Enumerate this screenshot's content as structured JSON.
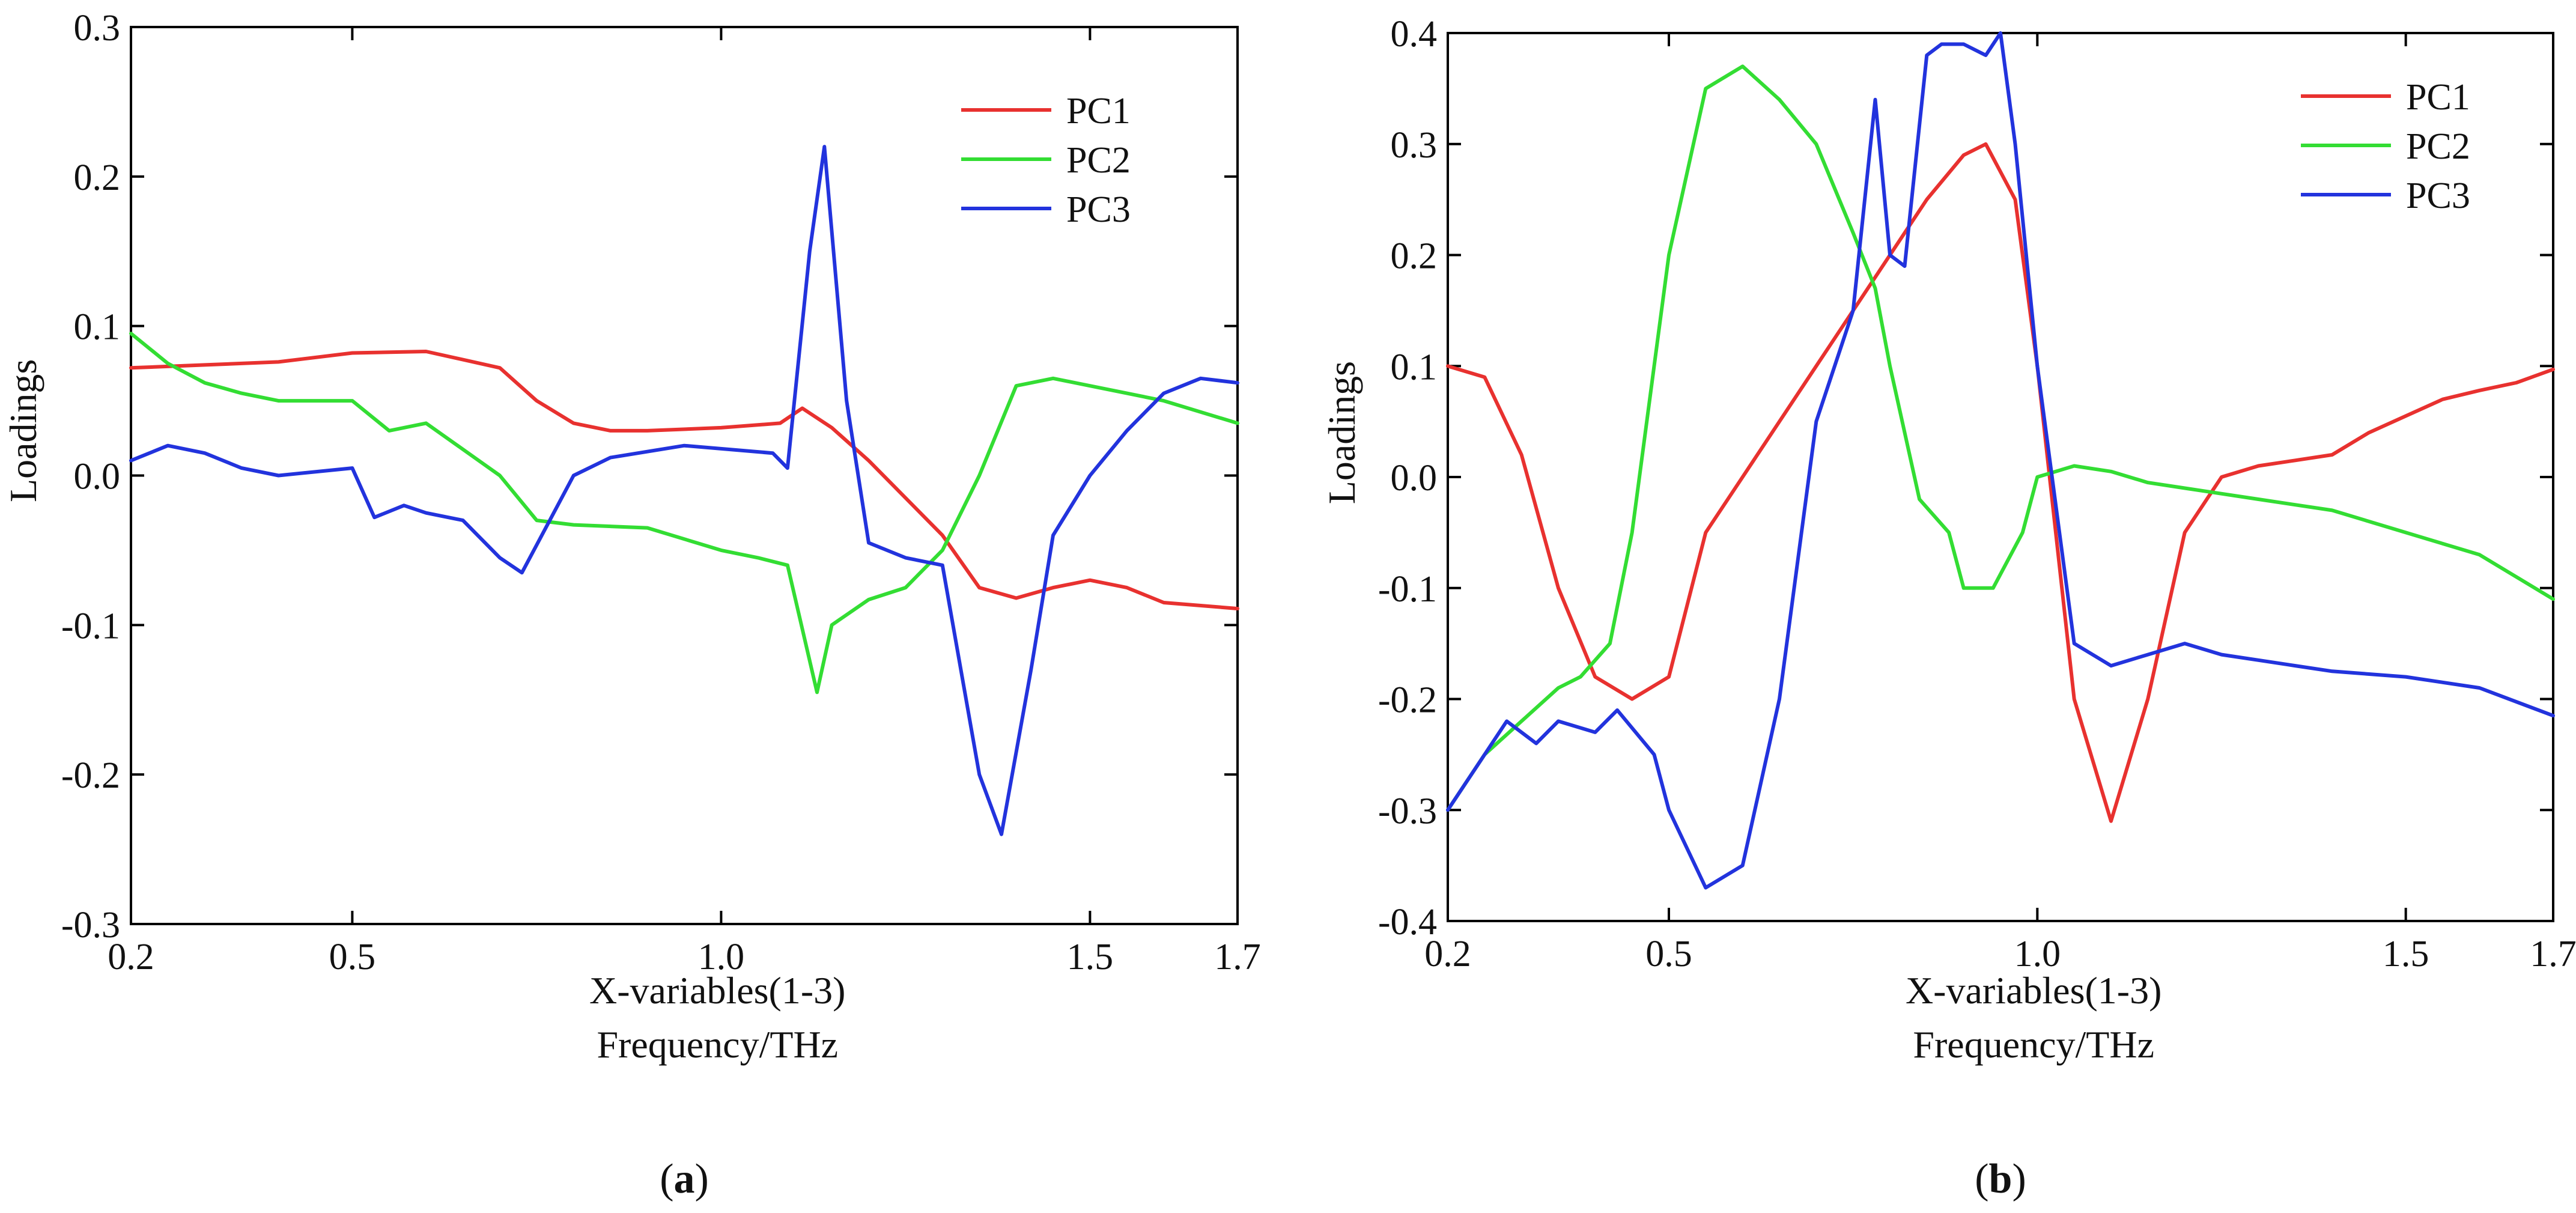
{
  "chart_data": [
    {
      "type": "line",
      "panel": "a",
      "panel_label": [
        "(",
        "a",
        ")"
      ],
      "xlabel": "X-variables(1-3)",
      "xlabel2": "Frequency/THz",
      "ylabel": "Loadings",
      "xlim": [
        0.2,
        1.7
      ],
      "ylim": [
        -0.3,
        0.3
      ],
      "xticks": [
        0.2,
        0.5,
        1.0,
        1.5,
        1.7
      ],
      "xtick_labels": [
        "0.2",
        "0.5",
        "1.0",
        "1.5",
        "1.7"
      ],
      "yticks": [
        -0.3,
        -0.2,
        -0.1,
        0.0,
        0.1,
        0.2,
        0.3
      ],
      "ytick_labels": [
        "-0.3",
        "-0.2",
        "-0.1",
        "0.0",
        "0.1",
        "0.2",
        "0.3"
      ],
      "legend_position": "top-right",
      "series": [
        {
          "name": "PC1",
          "color": "#e8312f",
          "x": [
            0.2,
            0.3,
            0.4,
            0.5,
            0.6,
            0.7,
            0.75,
            0.8,
            0.85,
            0.9,
            1.0,
            1.08,
            1.11,
            1.15,
            1.2,
            1.3,
            1.35,
            1.4,
            1.45,
            1.5,
            1.55,
            1.6,
            1.7
          ],
          "y": [
            0.072,
            0.074,
            0.076,
            0.082,
            0.083,
            0.072,
            0.05,
            0.035,
            0.03,
            0.03,
            0.032,
            0.035,
            0.045,
            0.032,
            0.01,
            -0.04,
            -0.075,
            -0.082,
            -0.075,
            -0.07,
            -0.075,
            -0.085,
            -0.089
          ]
        },
        {
          "name": "PC2",
          "color": "#33dd33",
          "x": [
            0.2,
            0.25,
            0.3,
            0.35,
            0.4,
            0.5,
            0.55,
            0.6,
            0.7,
            0.75,
            0.8,
            0.9,
            1.0,
            1.05,
            1.09,
            1.13,
            1.15,
            1.2,
            1.25,
            1.3,
            1.35,
            1.4,
            1.45,
            1.5,
            1.55,
            1.6,
            1.7
          ],
          "y": [
            0.095,
            0.075,
            0.062,
            0.055,
            0.05,
            0.05,
            0.03,
            0.035,
            0.0,
            -0.03,
            -0.033,
            -0.035,
            -0.05,
            -0.055,
            -0.06,
            -0.145,
            -0.1,
            -0.083,
            -0.075,
            -0.05,
            0.0,
            0.06,
            0.065,
            0.06,
            0.055,
            0.05,
            0.035
          ]
        },
        {
          "name": "PC3",
          "color": "#2233dd",
          "x": [
            0.2,
            0.25,
            0.3,
            0.35,
            0.4,
            0.5,
            0.53,
            0.57,
            0.6,
            0.65,
            0.7,
            0.73,
            0.8,
            0.85,
            0.95,
            1.07,
            1.09,
            1.12,
            1.14,
            1.17,
            1.2,
            1.25,
            1.3,
            1.35,
            1.38,
            1.42,
            1.45,
            1.5,
            1.55,
            1.6,
            1.65,
            1.7
          ],
          "y": [
            0.01,
            0.02,
            0.015,
            0.005,
            0.0,
            0.005,
            -0.028,
            -0.02,
            -0.025,
            -0.03,
            -0.055,
            -0.065,
            0.0,
            0.012,
            0.02,
            0.015,
            0.005,
            0.15,
            0.22,
            0.05,
            -0.045,
            -0.055,
            -0.06,
            -0.2,
            -0.24,
            -0.13,
            -0.04,
            0.0,
            0.03,
            0.055,
            0.065,
            0.062
          ]
        }
      ]
    },
    {
      "type": "line",
      "panel": "b",
      "panel_label": [
        "(",
        "b",
        ")"
      ],
      "xlabel": "X-variables(1-3)",
      "xlabel2": "Frequency/THz",
      "ylabel": "Loadings",
      "xlim": [
        0.2,
        1.7
      ],
      "ylim": [
        -0.4,
        0.4
      ],
      "xticks": [
        0.2,
        0.5,
        1.0,
        1.5,
        1.7
      ],
      "xtick_labels": [
        "0.2",
        "0.5",
        "1.0",
        "1.5",
        "1.7"
      ],
      "yticks": [
        -0.4,
        -0.3,
        -0.2,
        -0.1,
        0.0,
        0.1,
        0.2,
        0.3,
        0.4
      ],
      "ytick_labels": [
        "-0.4",
        "-0.3",
        "-0.2",
        "-0.1",
        "0.0",
        "0.1",
        "0.2",
        "0.3",
        "0.4"
      ],
      "legend_position": "top-right",
      "series": [
        {
          "name": "PC1",
          "color": "#e8312f",
          "x": [
            0.2,
            0.25,
            0.3,
            0.35,
            0.4,
            0.45,
            0.5,
            0.55,
            0.6,
            0.65,
            0.7,
            0.75,
            0.8,
            0.85,
            0.9,
            0.93,
            0.97,
            1.0,
            1.05,
            1.1,
            1.15,
            1.2,
            1.25,
            1.3,
            1.35,
            1.4,
            1.45,
            1.5,
            1.55,
            1.6,
            1.65,
            1.7
          ],
          "y": [
            0.1,
            0.09,
            0.02,
            -0.1,
            -0.18,
            -0.2,
            -0.18,
            -0.05,
            0.0,
            0.05,
            0.1,
            0.15,
            0.2,
            0.25,
            0.29,
            0.3,
            0.25,
            0.1,
            -0.2,
            -0.31,
            -0.2,
            -0.05,
            0.0,
            0.01,
            0.015,
            0.02,
            0.04,
            0.055,
            0.07,
            0.078,
            0.085,
            0.097
          ]
        },
        {
          "name": "PC2",
          "color": "#33dd33",
          "x": [
            0.2,
            0.25,
            0.3,
            0.35,
            0.38,
            0.42,
            0.45,
            0.5,
            0.55,
            0.6,
            0.65,
            0.7,
            0.75,
            0.78,
            0.8,
            0.84,
            0.88,
            0.9,
            0.94,
            0.98,
            1.0,
            1.05,
            1.1,
            1.15,
            1.2,
            1.3,
            1.4,
            1.5,
            1.6,
            1.7
          ],
          "y": [
            -0.3,
            -0.25,
            -0.22,
            -0.19,
            -0.18,
            -0.15,
            -0.05,
            0.2,
            0.35,
            0.37,
            0.34,
            0.3,
            0.22,
            0.17,
            0.1,
            -0.02,
            -0.05,
            -0.1,
            -0.1,
            -0.05,
            0.0,
            0.01,
            0.005,
            -0.005,
            -0.01,
            -0.02,
            -0.03,
            -0.05,
            -0.07,
            -0.11
          ]
        },
        {
          "name": "PC3",
          "color": "#2233dd",
          "x": [
            0.2,
            0.25,
            0.28,
            0.32,
            0.35,
            0.4,
            0.43,
            0.48,
            0.5,
            0.55,
            0.6,
            0.65,
            0.7,
            0.75,
            0.78,
            0.8,
            0.82,
            0.85,
            0.87,
            0.9,
            0.93,
            0.95,
            0.97,
            1.0,
            1.05,
            1.1,
            1.15,
            1.2,
            1.25,
            1.3,
            1.35,
            1.4,
            1.5,
            1.6,
            1.7
          ],
          "y": [
            -0.3,
            -0.25,
            -0.22,
            -0.24,
            -0.22,
            -0.23,
            -0.21,
            -0.25,
            -0.3,
            -0.37,
            -0.35,
            -0.2,
            0.05,
            0.15,
            0.34,
            0.2,
            0.19,
            0.38,
            0.39,
            0.39,
            0.38,
            0.4,
            0.3,
            0.1,
            -0.15,
            -0.17,
            -0.16,
            -0.15,
            -0.16,
            -0.165,
            -0.17,
            -0.175,
            -0.18,
            -0.19,
            -0.215
          ]
        }
      ]
    }
  ]
}
